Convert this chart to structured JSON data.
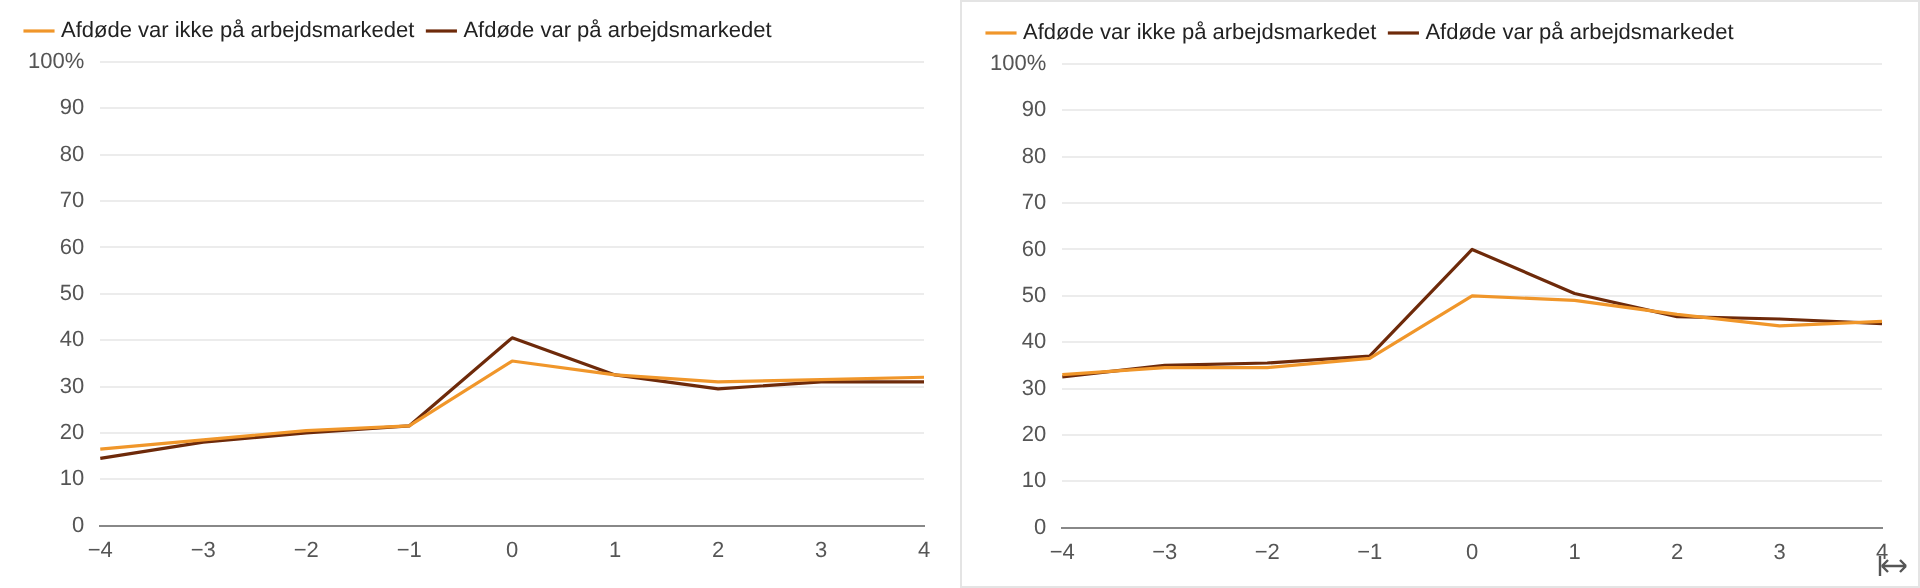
{
  "chart_data": [
    {
      "type": "line",
      "categories": [
        "−4",
        "−3",
        "−2",
        "−1",
        "0",
        "1",
        "2",
        "3",
        "4"
      ],
      "ylim": [
        0,
        100
      ],
      "yticks": [
        0,
        10,
        20,
        30,
        40,
        50,
        60,
        70,
        80,
        90,
        {
          "value": 100,
          "label": "100%"
        }
      ],
      "grid": "y",
      "legend": "top left",
      "marker": "none",
      "line_style": "solid",
      "series": [
        {
          "name": "Afdøde var ikke på arbejdsmarkedet",
          "color": "#f0962a",
          "values": [
            16.5,
            18.5,
            20.5,
            21.5,
            35.5,
            32.5,
            31,
            31.5,
            32
          ]
        },
        {
          "name": "Afdøde var på arbejdsmarkedet",
          "color": "#6e2a0a",
          "values": [
            14.5,
            18,
            20,
            21.5,
            40.5,
            32.5,
            29.5,
            31,
            31
          ]
        }
      ]
    },
    {
      "type": "line",
      "categories": [
        "−4",
        "−3",
        "−2",
        "−1",
        "0",
        "1",
        "2",
        "3",
        "4"
      ],
      "ylim": [
        0,
        100
      ],
      "yticks": [
        0,
        10,
        20,
        30,
        40,
        50,
        60,
        70,
        80,
        90,
        {
          "value": 100,
          "label": "100%"
        }
      ],
      "grid": "y",
      "legend": "top left",
      "marker": "none",
      "line_style": "solid",
      "series": [
        {
          "name": "Afdøde var ikke på arbejdsmarkedet",
          "color": "#f0962a",
          "values": [
            33,
            34.5,
            34.5,
            36.5,
            50,
            49,
            46,
            43.5,
            44.5
          ]
        },
        {
          "name": "Afdøde var på arbejdsmarkedet",
          "color": "#6e2a0a",
          "values": [
            32.5,
            35,
            35.5,
            37,
            60,
            50.5,
            45.5,
            45,
            44
          ]
        }
      ]
    }
  ]
}
